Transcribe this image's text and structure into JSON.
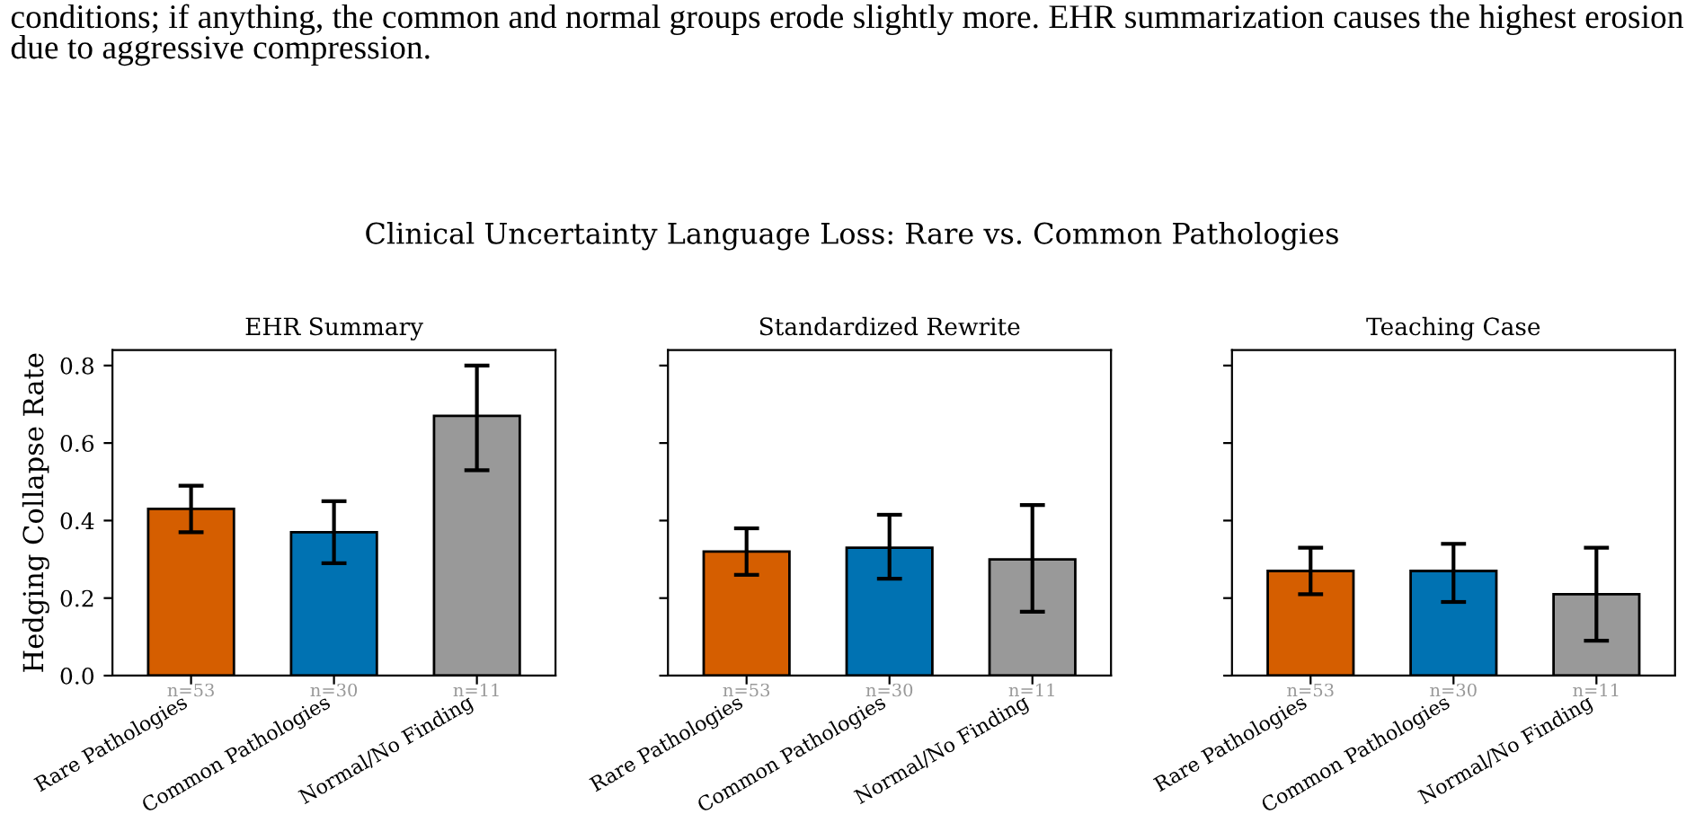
{
  "chart_data": [
    {
      "type": "bar",
      "title": "EHR Summary",
      "ylabel": "Hedging Collapse Rate",
      "categories": [
        "Rare Pathologies",
        "Common Pathologies",
        "Normal/No Finding"
      ],
      "values": [
        0.43,
        0.37,
        0.67
      ],
      "colors": [
        "#d55e00",
        "#0072b2",
        "#999999"
      ],
      "errors": [
        [
          0.37,
          0.49
        ],
        [
          0.29,
          0.45
        ],
        [
          0.53,
          0.8
        ]
      ],
      "ylim": [
        0,
        0.84
      ],
      "yticks": [
        {
          "value": 0,
          "label": "0.0"
        },
        {
          "value": 0.2,
          "label": "0.2"
        },
        {
          "value": 0.4,
          "label": "0.4"
        },
        {
          "value": 0.6,
          "label": "0.6"
        },
        {
          "value": 0.8,
          "label": "0.8"
        }
      ],
      "annotations": [
        "conditions; if anything, the common and normal groups erode slightly more. EHR summarization causes the highest erosion due to aggressive compression.",
        "Clinical Uncertainty Language Loss: Rare vs. Common Pathologies",
        {
          "text": "n=53",
          "x": "Rare Pathologies",
          "y": 0
        },
        {
          "text": "n=30",
          "x": "Common Pathologies",
          "y": 0
        },
        {
          "text": "n=11",
          "x": "Normal/No Finding",
          "y": 0
        }
      ]
    },
    {
      "type": "bar",
      "title": "Standardized Rewrite",
      "categories": [
        "Rare Pathologies",
        "Common Pathologies",
        "Normal/No Finding"
      ],
      "values": [
        0.32,
        0.33,
        0.3
      ],
      "colors": [
        "#d55e00",
        "#0072b2",
        "#999999"
      ],
      "errors": [
        [
          0.26,
          0.38
        ],
        [
          0.25,
          0.415
        ],
        [
          0.165,
          0.44
        ]
      ],
      "ylim": [
        0,
        0.84
      ],
      "yticks": [
        {
          "value": 0,
          "label": null
        },
        {
          "value": 0.2,
          "label": null
        },
        {
          "value": 0.4,
          "label": null
        },
        {
          "value": 0.6,
          "label": null
        },
        {
          "value": 0.8,
          "label": null
        }
      ],
      "tick_labels": "x",
      "annotations": [
        {
          "text": "n=53",
          "x": "Rare Pathologies",
          "y": 0
        },
        {
          "text": "n=30",
          "x": "Common Pathologies",
          "y": 0
        },
        {
          "text": "n=11",
          "x": "Normal/No Finding",
          "y": 0
        }
      ]
    },
    {
      "type": "bar",
      "title": "Teaching Case",
      "categories": [
        "Rare Pathologies",
        "Common Pathologies",
        "Normal/No Finding"
      ],
      "values": [
        0.27,
        0.27,
        0.21
      ],
      "colors": [
        "#d55e00",
        "#0072b2",
        "#999999"
      ],
      "errors": [
        [
          0.21,
          0.33
        ],
        [
          0.19,
          0.34
        ],
        [
          0.09,
          0.33
        ]
      ],
      "ylim": [
        0,
        0.84
      ],
      "yticks": [
        {
          "value": 0,
          "label": null
        },
        {
          "value": 0.2,
          "label": null
        },
        {
          "value": 0.4,
          "label": null
        },
        {
          "value": 0.6,
          "label": null
        },
        {
          "value": 0.8,
          "label": null
        }
      ],
      "tick_labels": "x",
      "annotations": [
        {
          "text": "n=53",
          "x": "Rare Pathologies",
          "y": 0
        },
        {
          "text": "n=30",
          "x": "Common Pathologies",
          "y": 0
        },
        {
          "text": "n=11",
          "x": "Normal/No Finding",
          "y": 0
        }
      ]
    }
  ]
}
